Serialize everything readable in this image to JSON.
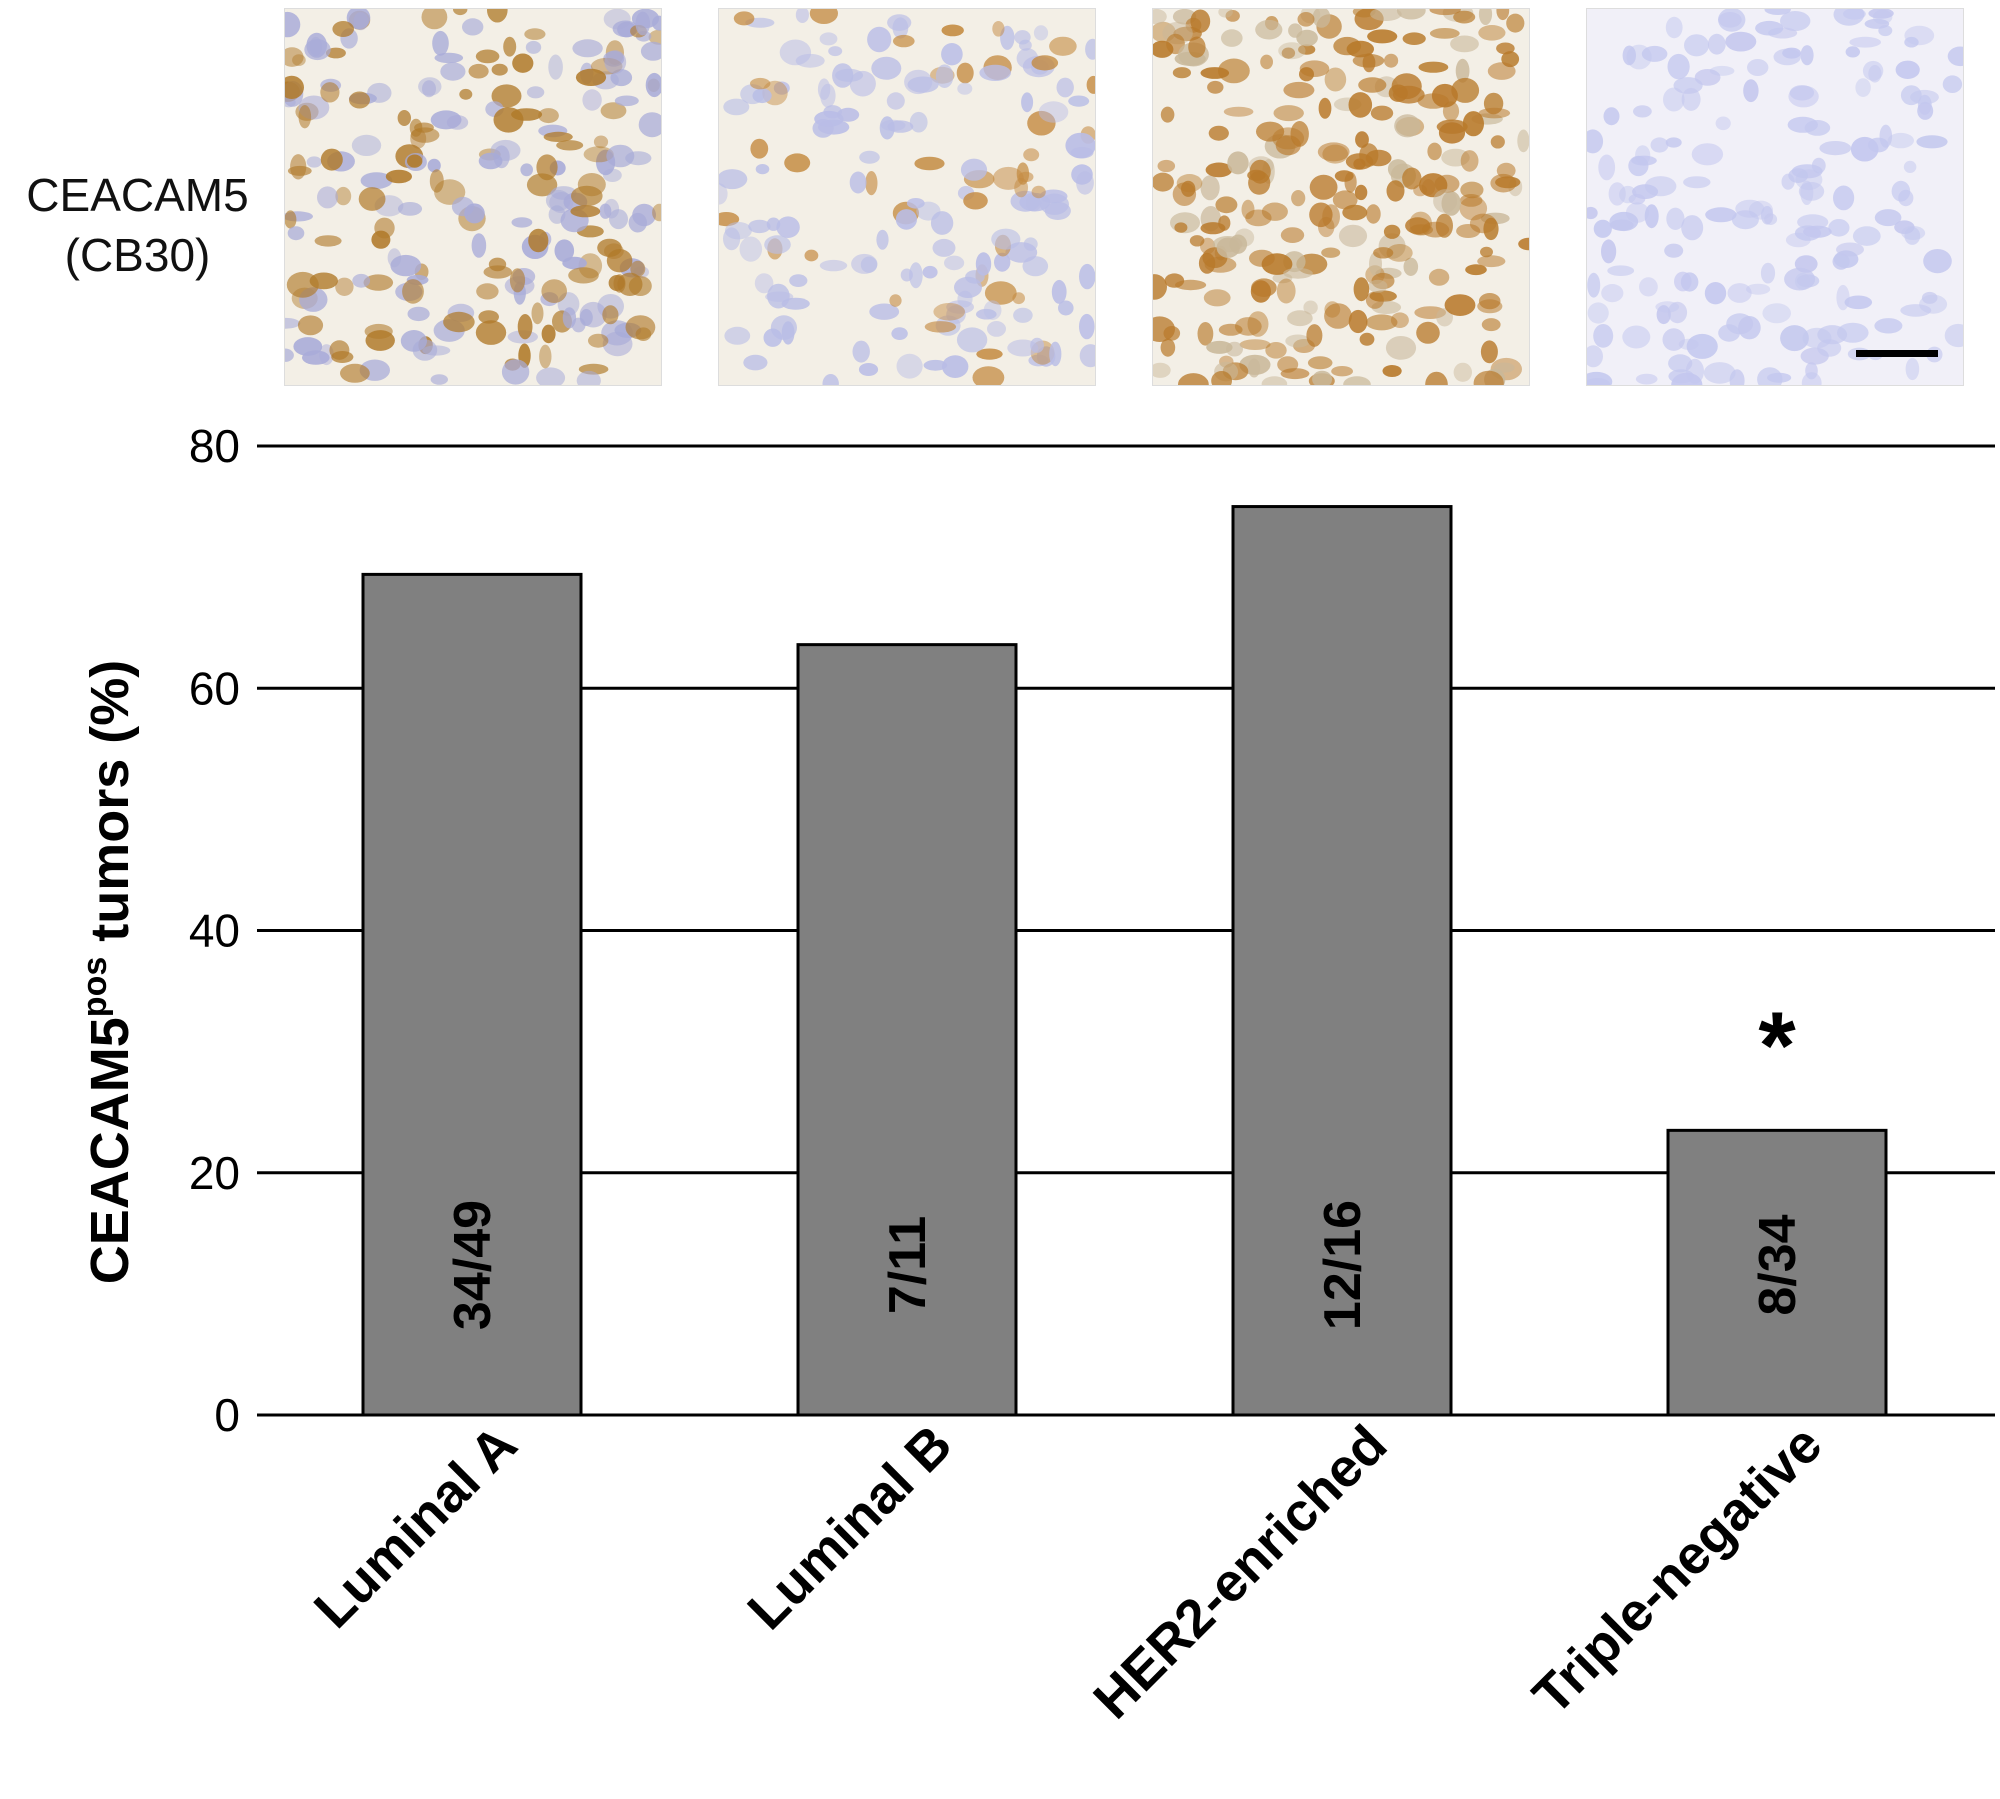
{
  "micrographs": {
    "row_label_line1": "CEACAM5",
    "row_label_line2": "(CB30)",
    "tiles": [
      {
        "name": "luminal-a",
        "stain": "moderate-diffuse",
        "brown": "#b07a2a",
        "blue": "#a8abd8"
      },
      {
        "name": "luminal-b",
        "stain": "focal",
        "brown": "#c48a40",
        "blue": "#b9bde6"
      },
      {
        "name": "her2-enriched",
        "stain": "strong-diffuse",
        "brown": "#b8792a",
        "blue": "#c9b89a"
      },
      {
        "name": "triple-negative",
        "stain": "negative",
        "brown": "#9a9fd6",
        "blue": "#c3c7ee"
      }
    ],
    "scale_bar": true
  },
  "chart_data": {
    "type": "bar",
    "categories": [
      "Luminal A",
      "Luminal B",
      "HER2-enriched",
      "Triple-negative"
    ],
    "values": [
      69.4,
      63.6,
      75.0,
      23.5
    ],
    "bar_labels": [
      "34/49",
      "7/11",
      "12/16",
      "8/34"
    ],
    "annotations": [
      "",
      "",
      "",
      "*"
    ],
    "ylabel_main": "CEACAM5",
    "ylabel_sup": "pos",
    "ylabel_rest": " tumors (%)",
    "yticks": [
      0,
      20,
      40,
      60,
      80
    ],
    "ylim": [
      0,
      80
    ],
    "grid": "horizontal",
    "bar_color": "#808080"
  }
}
